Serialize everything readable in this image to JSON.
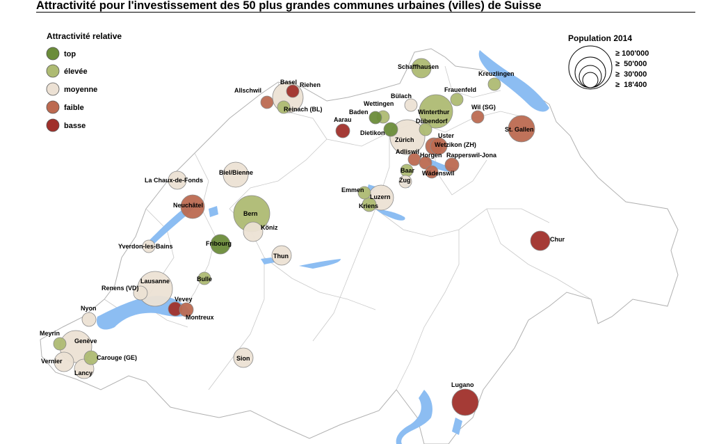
{
  "title": "Attractivité pour l'investissement des 50 plus grandes communes urbaines (villes) de Suisse",
  "colors": {
    "top": "#6b8c3a",
    "elevee": "#aebb73",
    "moyenne": "#ece1d4",
    "faible": "#bc6a51",
    "basse": "#a0302b",
    "water": "#8cbdf2",
    "border": "#c9c9c9"
  },
  "legend": {
    "title": "Attractivité relative",
    "items": [
      {
        "label": "top",
        "class": "top"
      },
      {
        "label": "élevée",
        "class": "elevee"
      },
      {
        "label": "moyenne",
        "class": "moyenne"
      },
      {
        "label": "faible",
        "class": "faible"
      },
      {
        "label": "basse",
        "class": "basse"
      }
    ]
  },
  "population_legend": {
    "title": "Population 2014",
    "items": [
      "≥ 100'000",
      "≥  50'000",
      "≥  30'000",
      "≥  18'400"
    ]
  },
  "cities": [
    {
      "name": "Schaffhausen",
      "class": "elevee"
    },
    {
      "name": "Kreuzlingen",
      "class": "elevee"
    },
    {
      "name": "Basel",
      "class": "moyenne"
    },
    {
      "name": "Riehen",
      "class": "basse"
    },
    {
      "name": "Allschwil",
      "class": "faible"
    },
    {
      "name": "Reinach (BL)",
      "class": "elevee"
    },
    {
      "name": "Frauenfeld",
      "class": "elevee"
    },
    {
      "name": "Bülach",
      "class": "moyenne"
    },
    {
      "name": "Wettingen",
      "class": "elevee"
    },
    {
      "name": "Baden",
      "class": "top"
    },
    {
      "name": "Winterthur",
      "class": "elevee"
    },
    {
      "name": "Wil (SG)",
      "class": "faible"
    },
    {
      "name": "Aarau",
      "class": "basse"
    },
    {
      "name": "Dübendorf",
      "class": "elevee"
    },
    {
      "name": "Dietikon",
      "class": "top"
    },
    {
      "name": "St. Gallen",
      "class": "faible"
    },
    {
      "name": "Zürich",
      "class": "moyenne"
    },
    {
      "name": "Uster",
      "class": "faible"
    },
    {
      "name": "Wetzikon (ZH)",
      "class": "faible"
    },
    {
      "name": "Adliswil",
      "class": "faible"
    },
    {
      "name": "Horgen",
      "class": "faible"
    },
    {
      "name": "Rapperswil-Jona",
      "class": "faible"
    },
    {
      "name": "Baar",
      "class": "elevee"
    },
    {
      "name": "Wädenswil",
      "class": "faible"
    },
    {
      "name": "Zug",
      "class": "moyenne"
    },
    {
      "name": "La Chaux-de-Fonds",
      "class": "moyenne"
    },
    {
      "name": "Biel/Bienne",
      "class": "moyenne"
    },
    {
      "name": "Emmen",
      "class": "elevee"
    },
    {
      "name": "Luzern",
      "class": "moyenne"
    },
    {
      "name": "Kriens",
      "class": "elevee"
    },
    {
      "name": "Neuchâtel",
      "class": "faible"
    },
    {
      "name": "Bern",
      "class": "elevee"
    },
    {
      "name": "Köniz",
      "class": "moyenne"
    },
    {
      "name": "Chur",
      "class": "basse"
    },
    {
      "name": "Yverdon-les-Bains",
      "class": "moyenne"
    },
    {
      "name": "Fribourg",
      "class": "top"
    },
    {
      "name": "Thun",
      "class": "moyenne"
    },
    {
      "name": "Bulle",
      "class": "elevee"
    },
    {
      "name": "Lausanne",
      "class": "moyenne"
    },
    {
      "name": "Renens (VD)",
      "class": "moyenne"
    },
    {
      "name": "Vevey",
      "class": "basse"
    },
    {
      "name": "Montreux",
      "class": "faible"
    },
    {
      "name": "Nyon",
      "class": "moyenne"
    },
    {
      "name": "Meyrin",
      "class": "elevee"
    },
    {
      "name": "Genève",
      "class": "moyenne"
    },
    {
      "name": "Carouge (GE)",
      "class": "elevee"
    },
    {
      "name": "Vernier",
      "class": "moyenne"
    },
    {
      "name": "Lancy",
      "class": "moyenne"
    },
    {
      "name": "Sion",
      "class": "moyenne"
    },
    {
      "name": "Lugano",
      "class": "basse"
    }
  ]
}
